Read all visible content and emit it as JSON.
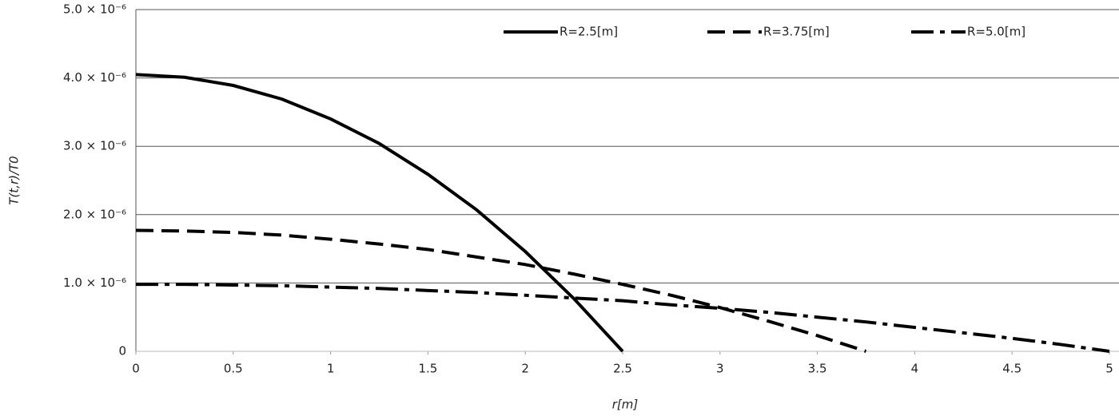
{
  "chart_data": {
    "type": "line",
    "xlabel": "r[m]",
    "ylabel": "T(t,r)/T0",
    "x": [
      0,
      0.25,
      0.5,
      0.75,
      1,
      1.25,
      1.5,
      1.75,
      2,
      2.25,
      2.5,
      2.75,
      3,
      3.25,
      3.5,
      3.75,
      4,
      4.25,
      4.5,
      4.75,
      5
    ],
    "series": [
      {
        "name": "R=2.5[m]",
        "color": "#000000",
        "line_style": "solid",
        "values": [
          4.05e-06,
          4.01e-06,
          3.89e-06,
          3.69e-06,
          3.4e-06,
          3.04e-06,
          2.59e-06,
          2.07e-06,
          1.46e-06,
          7.7e-07,
          0,
          null,
          null,
          null,
          null,
          null,
          null,
          null,
          null,
          null,
          null
        ]
      },
      {
        "name": "R=3.75[m]",
        "color": "#000000",
        "line_style": "dashed",
        "values": [
          1.77e-06,
          1.76e-06,
          1.74e-06,
          1.7e-06,
          1.64e-06,
          1.57e-06,
          1.49e-06,
          1.38e-06,
          1.27e-06,
          1.13e-06,
          9.8e-07,
          8.2e-07,
          6.4e-07,
          4.4e-07,
          2.3e-07,
          0,
          null,
          null,
          null,
          null,
          null
        ]
      },
      {
        "name": "R=5.0[m]",
        "color": "#000000",
        "line_style": "dashdot",
        "values": [
          9.8e-07,
          9.8e-07,
          9.7e-07,
          9.6e-07,
          9.4e-07,
          9.2e-07,
          8.9e-07,
          8.6e-07,
          8.2e-07,
          7.8e-07,
          7.4e-07,
          6.8e-07,
          6.3e-07,
          5.7e-07,
          5e-07,
          4.3e-07,
          3.5e-07,
          2.7e-07,
          1.9e-07,
          1e-07,
          0
        ]
      }
    ],
    "xlim": [
      0,
      5
    ],
    "xticks": [
      0,
      0.5,
      1,
      1.5,
      2,
      2.5,
      3,
      3.5,
      4,
      4.5,
      5
    ],
    "ylim": [
      0,
      5e-06
    ],
    "yticks": [
      0,
      {
        "value": 1e-06,
        "label": "1.0 × 10⁻⁶"
      },
      {
        "value": 2e-06,
        "label": "2.0 × 10⁻⁶"
      },
      {
        "value": 3e-06,
        "label": "3.0 × 10⁻⁶"
      },
      {
        "value": 4e-06,
        "label": "4.0 × 10⁻⁶"
      },
      {
        "value": 5e-06,
        "label": "5.0 × 10⁻⁶"
      }
    ],
    "grid": true,
    "legend": "top"
  }
}
